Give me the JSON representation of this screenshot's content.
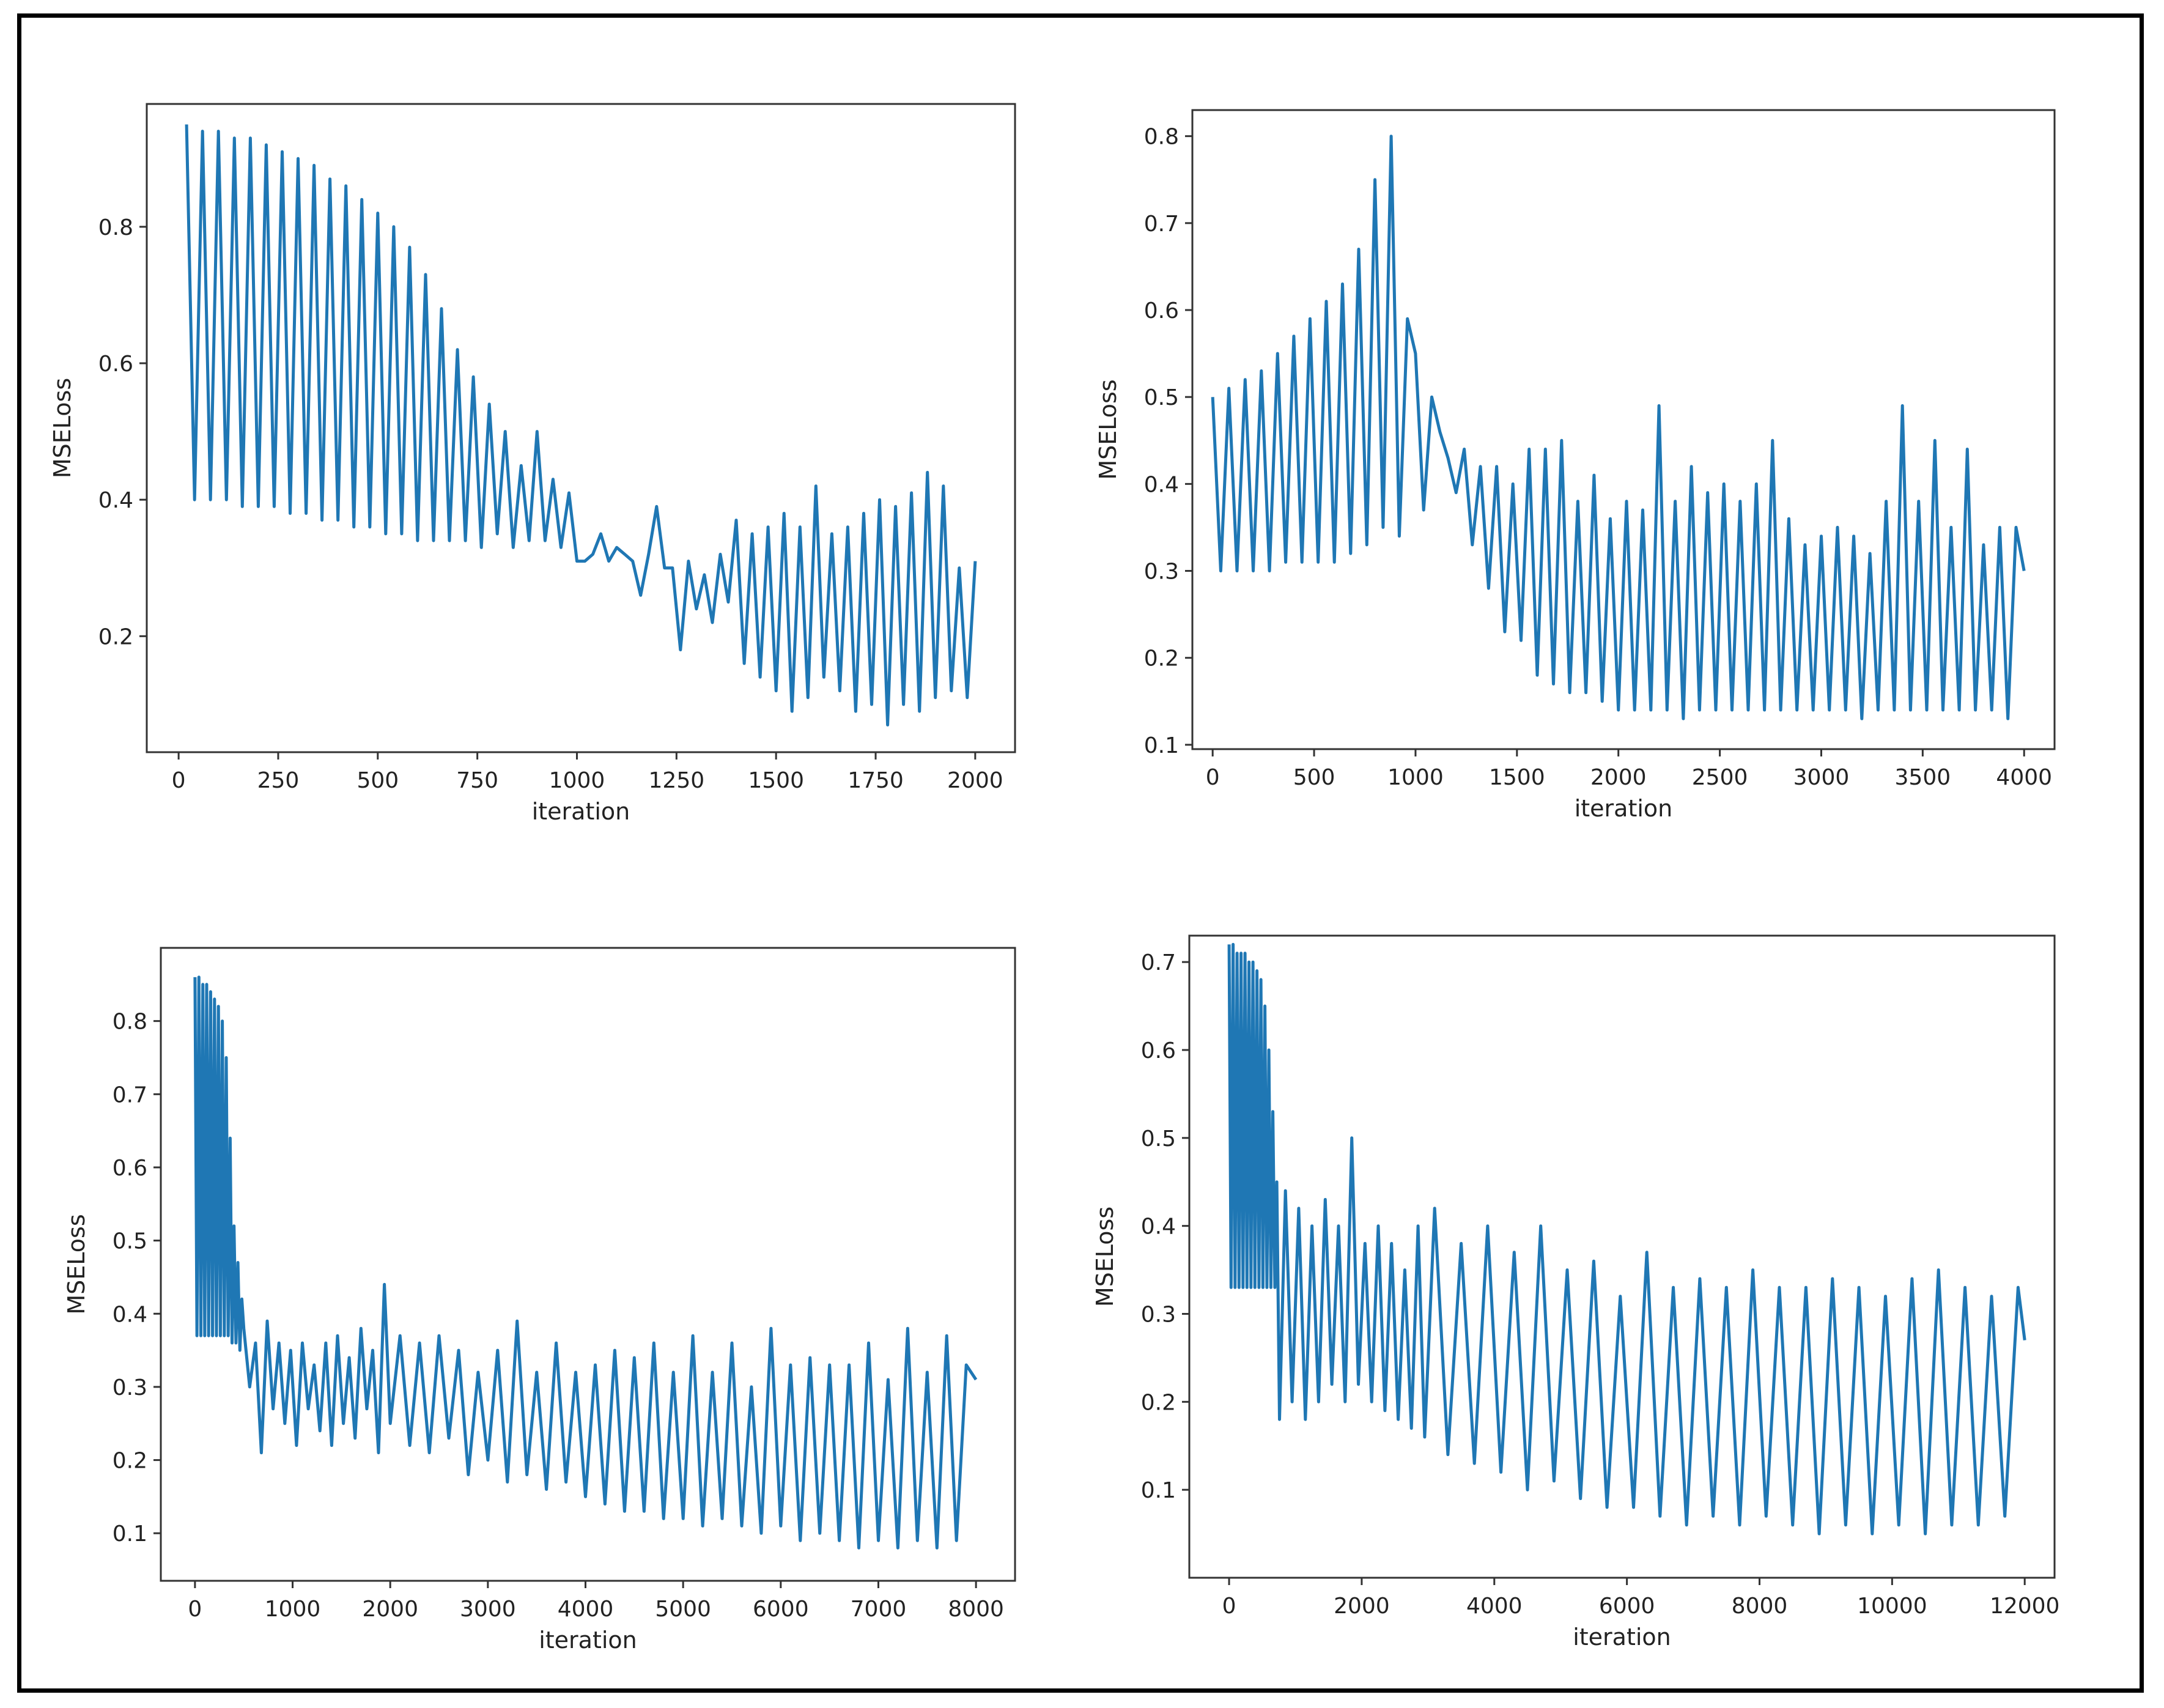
{
  "chart_data": [
    {
      "type": "line",
      "color": "#1f77b4",
      "xlabel": "iteration",
      "ylabel": "MSELoss",
      "xlim": [
        -80,
        2100
      ],
      "ylim": [
        0.03,
        0.98
      ],
      "xticks": [
        0,
        250,
        500,
        750,
        1000,
        1250,
        1500,
        1750,
        2000
      ],
      "xtick_labels": [
        "0",
        "250",
        "500",
        "750",
        "1000",
        "1250",
        "1500",
        "1750",
        "2000"
      ],
      "yticks": [
        0.2,
        0.4,
        0.6,
        0.8
      ],
      "ytick_labels": [
        "0.2",
        "0.4",
        "0.6",
        "0.8"
      ],
      "series": [
        {
          "name": "MSELoss",
          "x": [
            20,
            40,
            60,
            80,
            100,
            120,
            140,
            160,
            180,
            200,
            220,
            240,
            260,
            280,
            300,
            320,
            340,
            360,
            380,
            400,
            420,
            440,
            460,
            480,
            500,
            520,
            540,
            560,
            580,
            600,
            620,
            640,
            660,
            680,
            700,
            720,
            740,
            760,
            780,
            800,
            820,
            840,
            860,
            880,
            900,
            920,
            940,
            960,
            980,
            1000,
            1020,
            1040,
            1060,
            1080,
            1100,
            1120,
            1140,
            1160,
            1180,
            1200,
            1220,
            1240,
            1260,
            1280,
            1300,
            1320,
            1340,
            1360,
            1380,
            1400,
            1420,
            1440,
            1460,
            1480,
            1500,
            1520,
            1540,
            1560,
            1580,
            1600,
            1620,
            1640,
            1660,
            1680,
            1700,
            1720,
            1740,
            1760,
            1780,
            1800,
            1820,
            1840,
            1860,
            1880,
            1900,
            1920,
            1940,
            1960,
            1980,
            2000
          ],
          "y": [
            0.95,
            0.4,
            0.94,
            0.4,
            0.94,
            0.4,
            0.93,
            0.39,
            0.93,
            0.39,
            0.92,
            0.39,
            0.91,
            0.38,
            0.9,
            0.38,
            0.89,
            0.37,
            0.87,
            0.37,
            0.86,
            0.36,
            0.84,
            0.36,
            0.82,
            0.35,
            0.8,
            0.35,
            0.77,
            0.34,
            0.73,
            0.34,
            0.68,
            0.34,
            0.62,
            0.34,
            0.58,
            0.33,
            0.54,
            0.35,
            0.5,
            0.33,
            0.45,
            0.34,
            0.5,
            0.34,
            0.43,
            0.33,
            0.41,
            0.31,
            0.31,
            0.32,
            0.35,
            0.31,
            0.33,
            0.32,
            0.31,
            0.26,
            0.32,
            0.39,
            0.3,
            0.3,
            0.18,
            0.31,
            0.24,
            0.29,
            0.22,
            0.32,
            0.25,
            0.37,
            0.16,
            0.35,
            0.14,
            0.36,
            0.12,
            0.38,
            0.09,
            0.36,
            0.11,
            0.42,
            0.14,
            0.35,
            0.12,
            0.36,
            0.09,
            0.38,
            0.1,
            0.4,
            0.07,
            0.39,
            0.1,
            0.41,
            0.09,
            0.44,
            0.11,
            0.42,
            0.12,
            0.3,
            0.11,
            0.31
          ]
        }
      ]
    },
    {
      "type": "line",
      "color": "#1f77b4",
      "xlabel": "iteration",
      "ylabel": "MSELoss",
      "xlim": [
        -100,
        4150
      ],
      "ylim": [
        0.095,
        0.83
      ],
      "xticks": [
        0,
        500,
        1000,
        1500,
        2000,
        2500,
        3000,
        3500,
        4000
      ],
      "xtick_labels": [
        "0",
        "500",
        "1000",
        "1500",
        "2000",
        "2500",
        "3000",
        "3500",
        "4000"
      ],
      "yticks": [
        0.1,
        0.2,
        0.3,
        0.4,
        0.5,
        0.6,
        0.7,
        0.8
      ],
      "ytick_labels": [
        "0.1",
        "0.2",
        "0.3",
        "0.4",
        "0.5",
        "0.6",
        "0.7",
        "0.8"
      ],
      "series": [
        {
          "name": "MSELoss",
          "x": [
            0,
            40,
            80,
            120,
            160,
            200,
            240,
            280,
            320,
            360,
            400,
            440,
            480,
            520,
            560,
            600,
            640,
            680,
            720,
            760,
            800,
            840,
            880,
            920,
            960,
            1000,
            1040,
            1080,
            1120,
            1160,
            1200,
            1240,
            1280,
            1320,
            1360,
            1400,
            1440,
            1480,
            1520,
            1560,
            1600,
            1640,
            1680,
            1720,
            1760,
            1800,
            1840,
            1880,
            1920,
            1960,
            2000,
            2040,
            2080,
            2120,
            2160,
            2200,
            2240,
            2280,
            2320,
            2360,
            2400,
            2440,
            2480,
            2520,
            2560,
            2600,
            2640,
            2680,
            2720,
            2760,
            2800,
            2840,
            2880,
            2920,
            2960,
            3000,
            3040,
            3080,
            3120,
            3160,
            3200,
            3240,
            3280,
            3320,
            3360,
            3400,
            3440,
            3480,
            3520,
            3560,
            3600,
            3640,
            3680,
            3720,
            3760,
            3800,
            3840,
            3880,
            3920,
            3960,
            4000
          ],
          "y": [
            0.5,
            0.3,
            0.51,
            0.3,
            0.52,
            0.3,
            0.53,
            0.3,
            0.55,
            0.31,
            0.57,
            0.31,
            0.59,
            0.31,
            0.61,
            0.31,
            0.63,
            0.32,
            0.67,
            0.33,
            0.75,
            0.35,
            0.8,
            0.34,
            0.59,
            0.55,
            0.37,
            0.5,
            0.46,
            0.43,
            0.39,
            0.44,
            0.33,
            0.42,
            0.28,
            0.42,
            0.23,
            0.4,
            0.22,
            0.44,
            0.18,
            0.44,
            0.17,
            0.45,
            0.16,
            0.38,
            0.16,
            0.41,
            0.15,
            0.36,
            0.14,
            0.38,
            0.14,
            0.37,
            0.14,
            0.49,
            0.14,
            0.38,
            0.13,
            0.42,
            0.14,
            0.39,
            0.14,
            0.4,
            0.14,
            0.38,
            0.14,
            0.4,
            0.14,
            0.45,
            0.14,
            0.36,
            0.14,
            0.33,
            0.14,
            0.34,
            0.14,
            0.35,
            0.14,
            0.34,
            0.13,
            0.32,
            0.14,
            0.38,
            0.14,
            0.49,
            0.14,
            0.38,
            0.14,
            0.45,
            0.14,
            0.35,
            0.14,
            0.44,
            0.14,
            0.33,
            0.14,
            0.35,
            0.13,
            0.35,
            0.3
          ]
        }
      ]
    },
    {
      "type": "line",
      "color": "#1f77b4",
      "xlabel": "iteration",
      "ylabel": "MSELoss",
      "xlim": [
        -350,
        8400
      ],
      "ylim": [
        0.035,
        0.9
      ],
      "xticks": [
        0,
        1000,
        2000,
        3000,
        4000,
        5000,
        6000,
        7000,
        8000
      ],
      "xtick_labels": [
        "0",
        "1000",
        "2000",
        "3000",
        "4000",
        "5000",
        "6000",
        "7000",
        "8000"
      ],
      "yticks": [
        0.1,
        0.2,
        0.3,
        0.4,
        0.5,
        0.6,
        0.7,
        0.8
      ],
      "ytick_labels": [
        "0.1",
        "0.2",
        "0.3",
        "0.4",
        "0.5",
        "0.6",
        "0.7",
        "0.8"
      ],
      "series": [
        {
          "name": "MSELoss",
          "x": [
            0,
            20,
            40,
            60,
            80,
            100,
            120,
            140,
            160,
            180,
            200,
            220,
            240,
            260,
            280,
            300,
            320,
            340,
            360,
            380,
            400,
            420,
            440,
            460,
            480,
            500,
            560,
            620,
            680,
            740,
            800,
            860,
            920,
            980,
            1040,
            1100,
            1160,
            1220,
            1280,
            1340,
            1400,
            1460,
            1520,
            1580,
            1640,
            1700,
            1760,
            1820,
            1880,
            1940,
            2000,
            2100,
            2200,
            2300,
            2400,
            2500,
            2600,
            2700,
            2800,
            2900,
            3000,
            3100,
            3200,
            3300,
            3400,
            3500,
            3600,
            3700,
            3800,
            3900,
            4000,
            4100,
            4200,
            4300,
            4400,
            4500,
            4600,
            4700,
            4800,
            4900,
            5000,
            5100,
            5200,
            5300,
            5400,
            5500,
            5600,
            5700,
            5800,
            5900,
            6000,
            6100,
            6200,
            6300,
            6400,
            6500,
            6600,
            6700,
            6800,
            6900,
            7000,
            7100,
            7200,
            7300,
            7400,
            7500,
            7600,
            7700,
            7800,
            7900,
            8000
          ],
          "y": [
            0.86,
            0.37,
            0.86,
            0.37,
            0.85,
            0.37,
            0.85,
            0.37,
            0.84,
            0.37,
            0.83,
            0.37,
            0.82,
            0.37,
            0.8,
            0.37,
            0.75,
            0.37,
            0.64,
            0.36,
            0.52,
            0.36,
            0.47,
            0.35,
            0.42,
            0.38,
            0.3,
            0.36,
            0.21,
            0.39,
            0.27,
            0.36,
            0.25,
            0.35,
            0.22,
            0.36,
            0.27,
            0.33,
            0.24,
            0.36,
            0.22,
            0.37,
            0.25,
            0.34,
            0.23,
            0.38,
            0.27,
            0.35,
            0.21,
            0.44,
            0.25,
            0.37,
            0.22,
            0.36,
            0.21,
            0.37,
            0.23,
            0.35,
            0.18,
            0.32,
            0.2,
            0.35,
            0.17,
            0.39,
            0.18,
            0.32,
            0.16,
            0.36,
            0.17,
            0.32,
            0.15,
            0.33,
            0.14,
            0.35,
            0.13,
            0.34,
            0.13,
            0.36,
            0.12,
            0.32,
            0.12,
            0.37,
            0.11,
            0.32,
            0.12,
            0.36,
            0.11,
            0.3,
            0.1,
            0.38,
            0.11,
            0.33,
            0.09,
            0.34,
            0.1,
            0.33,
            0.09,
            0.33,
            0.08,
            0.36,
            0.09,
            0.31,
            0.08,
            0.38,
            0.09,
            0.32,
            0.08,
            0.37,
            0.09,
            0.33,
            0.31
          ]
        }
      ]
    },
    {
      "type": "line",
      "color": "#1f77b4",
      "xlabel": "iteration",
      "ylabel": "MSELoss",
      "xlim": [
        -600,
        12450
      ],
      "ylim": [
        0.0,
        0.73
      ],
      "xticks": [
        0,
        2000,
        4000,
        6000,
        8000,
        10000,
        12000
      ],
      "xtick_labels": [
        "0",
        "2000",
        "4000",
        "6000",
        "8000",
        "10000",
        "12000"
      ],
      "yticks": [
        0.1,
        0.2,
        0.3,
        0.4,
        0.5,
        0.6,
        0.7
      ],
      "ytick_labels": [
        "0.1",
        "0.2",
        "0.3",
        "0.4",
        "0.5",
        "0.6",
        "0.7"
      ],
      "series": [
        {
          "name": "MSELoss",
          "x": [
            0,
            30,
            60,
            90,
            120,
            150,
            180,
            210,
            240,
            270,
            300,
            330,
            360,
            390,
            420,
            450,
            480,
            510,
            540,
            570,
            600,
            630,
            660,
            690,
            720,
            760,
            850,
            950,
            1050,
            1150,
            1250,
            1350,
            1450,
            1550,
            1650,
            1750,
            1850,
            1950,
            2050,
            2150,
            2250,
            2350,
            2450,
            2550,
            2650,
            2750,
            2850,
            2950,
            3100,
            3300,
            3500,
            3700,
            3900,
            4100,
            4300,
            4500,
            4700,
            4900,
            5100,
            5300,
            5500,
            5700,
            5900,
            6100,
            6300,
            6500,
            6700,
            6900,
            7100,
            7300,
            7500,
            7700,
            7900,
            8100,
            8300,
            8500,
            8700,
            8900,
            9100,
            9300,
            9500,
            9700,
            9900,
            10100,
            10300,
            10500,
            10700,
            10900,
            11100,
            11300,
            11500,
            11700,
            11900,
            12000
          ],
          "y": [
            0.72,
            0.33,
            0.72,
            0.33,
            0.71,
            0.33,
            0.71,
            0.33,
            0.71,
            0.33,
            0.7,
            0.33,
            0.7,
            0.33,
            0.69,
            0.33,
            0.68,
            0.33,
            0.65,
            0.33,
            0.6,
            0.33,
            0.53,
            0.33,
            0.45,
            0.18,
            0.44,
            0.2,
            0.42,
            0.18,
            0.4,
            0.2,
            0.43,
            0.22,
            0.4,
            0.2,
            0.5,
            0.22,
            0.38,
            0.2,
            0.4,
            0.19,
            0.38,
            0.18,
            0.35,
            0.17,
            0.4,
            0.16,
            0.42,
            0.14,
            0.38,
            0.13,
            0.4,
            0.12,
            0.37,
            0.1,
            0.4,
            0.11,
            0.35,
            0.09,
            0.36,
            0.08,
            0.32,
            0.08,
            0.37,
            0.07,
            0.33,
            0.06,
            0.34,
            0.07,
            0.33,
            0.06,
            0.35,
            0.07,
            0.33,
            0.06,
            0.33,
            0.05,
            0.34,
            0.06,
            0.33,
            0.05,
            0.32,
            0.06,
            0.34,
            0.05,
            0.35,
            0.06,
            0.33,
            0.06,
            0.32,
            0.07,
            0.33,
            0.27
          ]
        }
      ]
    }
  ]
}
